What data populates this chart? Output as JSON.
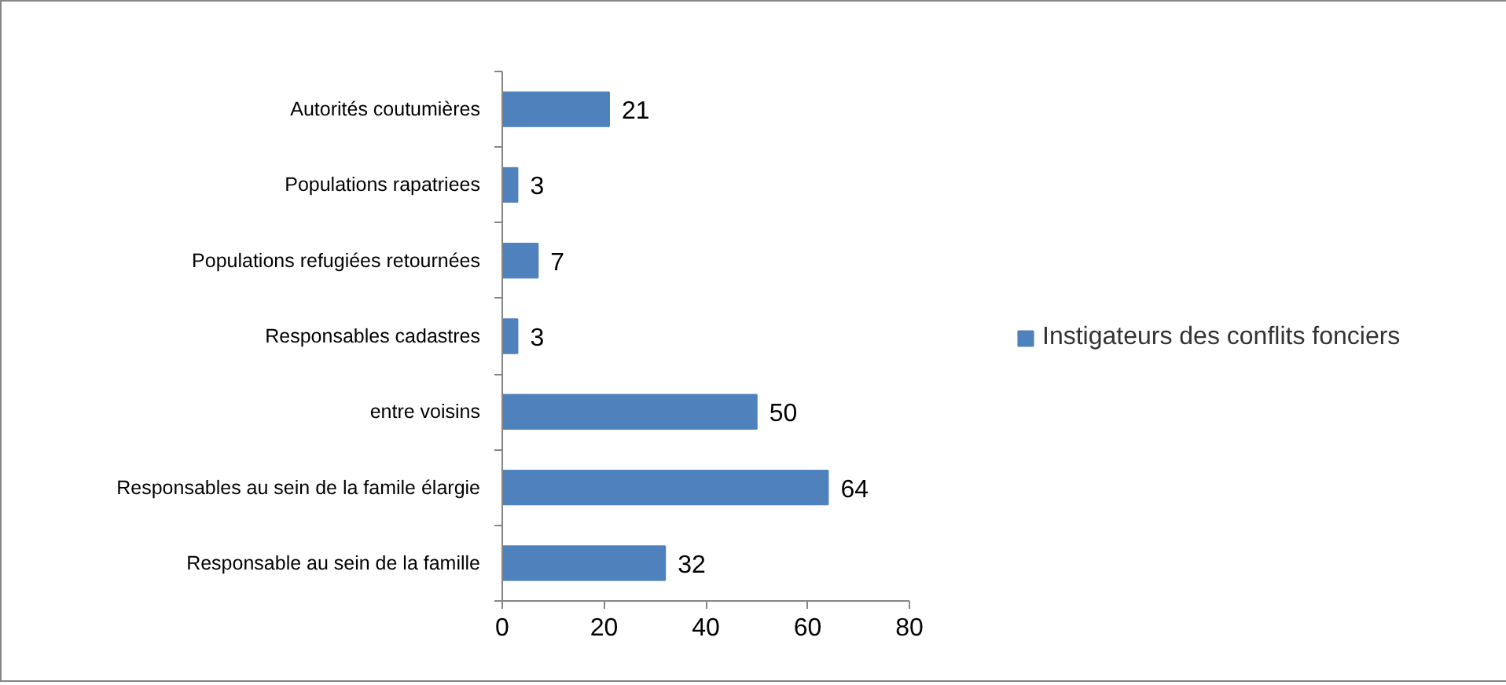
{
  "chart_data": {
    "type": "bar",
    "orientation": "horizontal",
    "categories": [
      "Autorités coutumières",
      "Populations rapatriees",
      "Populations refugiées retournées",
      "Responsables cadastres",
      "entre voisins",
      "Responsables au sein de la famile élargie",
      "Responsable au sein de la famille"
    ],
    "series": [
      {
        "name": "Instigateurs des conflits fonciers",
        "color": "#4f81bd",
        "values": [
          21,
          3,
          7,
          3,
          50,
          64,
          32
        ]
      }
    ],
    "xlim": [
      0,
      80
    ],
    "xticks": [
      0,
      20,
      40,
      60,
      80
    ],
    "grid": false,
    "legend": "right",
    "data_labels": true
  }
}
